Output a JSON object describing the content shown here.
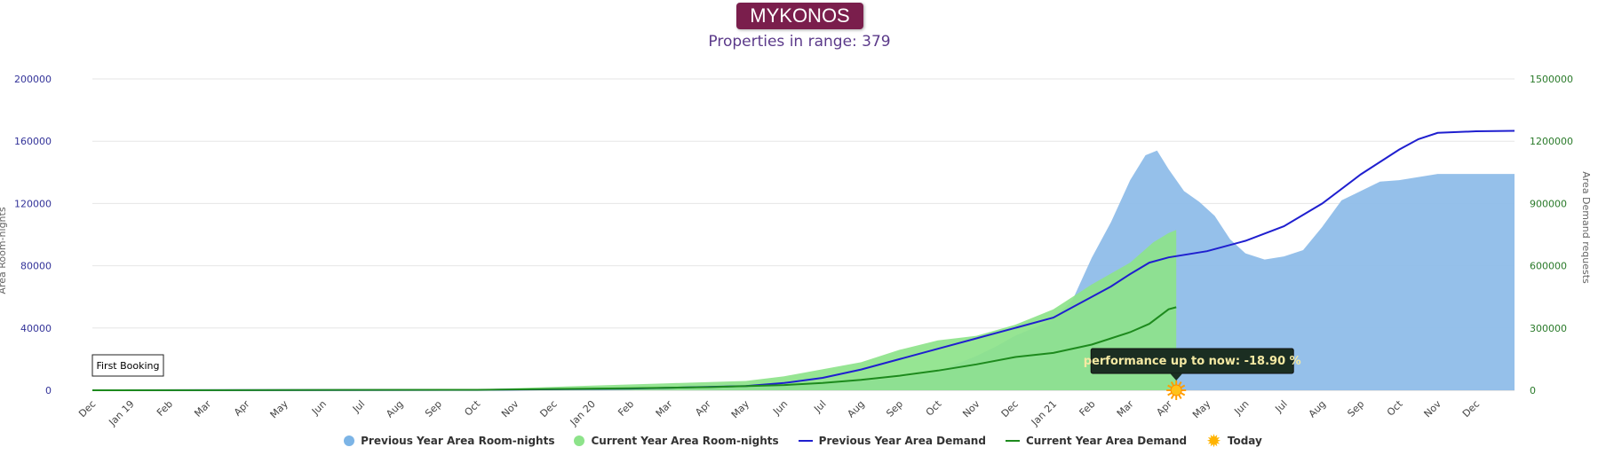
{
  "header": {
    "title": "MYKONOS",
    "subtitle": "Properties in range: 379"
  },
  "chart_data": {
    "type": "area",
    "x_categories": [
      "Dec",
      "Jan 19",
      "Feb",
      "Mar",
      "Apr",
      "May",
      "Jun",
      "Jul",
      "Aug",
      "Sep",
      "Oct",
      "Nov",
      "Dec",
      "Jan 20",
      "Feb",
      "Mar",
      "Apr",
      "May",
      "Jun",
      "Jul",
      "Aug",
      "Sep",
      "Oct",
      "Nov",
      "Dec",
      "Jan 21",
      "Feb",
      "Mar",
      "Apr",
      "May",
      "Jun",
      "Jul",
      "Aug",
      "Sep",
      "Oct",
      "Nov",
      "Dec"
    ],
    "left_axis": {
      "label": "Area Room-nights",
      "ticks": [
        "0",
        "40000",
        "80000",
        "120000",
        "160000",
        "200000"
      ],
      "range": [
        0,
        200000
      ],
      "color": "#333399"
    },
    "right_axis": {
      "label": "Area Demand requests",
      "ticks": [
        "0",
        "300000",
        "600000",
        "900000",
        "1200000",
        "1500000"
      ],
      "range": [
        0,
        1500000
      ],
      "color": "#2a7a2a"
    },
    "grid": true,
    "legend_position": "bottom",
    "series": [
      {
        "name": "Previous Year Area Room-nights",
        "kind": "area",
        "axis": "left",
        "color": "#8fbde9",
        "points": [
          [
            0,
            0
          ],
          [
            10,
            300
          ],
          [
            13,
            800
          ],
          [
            17,
            2000
          ],
          [
            20,
            6000
          ],
          [
            21,
            8000
          ],
          [
            22,
            12000
          ],
          [
            23,
            22000
          ],
          [
            23.5,
            28000
          ],
          [
            24,
            35000
          ],
          [
            24.5,
            40000
          ],
          [
            25,
            46000
          ],
          [
            25.5,
            58000
          ],
          [
            26,
            85000
          ],
          [
            26.5,
            108000
          ],
          [
            27,
            135000
          ],
          [
            27.4,
            151000
          ],
          [
            27.7,
            154000
          ],
          [
            28,
            142000
          ],
          [
            28.4,
            128000
          ],
          [
            28.8,
            121000
          ],
          [
            29.2,
            112000
          ],
          [
            29.6,
            97000
          ],
          [
            30,
            88000
          ],
          [
            30.5,
            84000
          ],
          [
            31,
            86000
          ],
          [
            31.5,
            90000
          ],
          [
            32,
            105000
          ],
          [
            32.5,
            122000
          ],
          [
            33,
            128000
          ],
          [
            33.5,
            134000
          ],
          [
            34,
            135000
          ],
          [
            34.5,
            137000
          ],
          [
            35,
            139000
          ],
          [
            36,
            139000
          ],
          [
            37,
            139000
          ]
        ]
      },
      {
        "name": "Current Year Area Room-nights",
        "kind": "area",
        "axis": "left",
        "color": "#8de38a",
        "points": [
          [
            0,
            0
          ],
          [
            10,
            500
          ],
          [
            13,
            3000
          ],
          [
            15,
            4500
          ],
          [
            17,
            6000
          ],
          [
            18,
            9000
          ],
          [
            20,
            18000
          ],
          [
            21,
            26000
          ],
          [
            22,
            32000
          ],
          [
            23,
            35000
          ],
          [
            24,
            42000
          ],
          [
            25,
            52000
          ],
          [
            26,
            68000
          ],
          [
            27,
            82000
          ],
          [
            27.6,
            95000
          ],
          [
            28,
            101000
          ],
          [
            28.2,
            103000
          ],
          [
            28.2,
            0
          ]
        ]
      },
      {
        "name": "Previous Year Area Demand",
        "kind": "line",
        "axis": "right",
        "color": "#1f1fcf",
        "points": [
          [
            0,
            0
          ],
          [
            10,
            1500
          ],
          [
            14,
            8000
          ],
          [
            17,
            20000
          ],
          [
            18,
            35000
          ],
          [
            19,
            60000
          ],
          [
            20,
            100000
          ],
          [
            21,
            150000
          ],
          [
            22,
            200000
          ],
          [
            23,
            250000
          ],
          [
            24,
            300000
          ],
          [
            25,
            350000
          ],
          [
            25.5,
            400000
          ],
          [
            26,
            450000
          ],
          [
            26.5,
            500000
          ],
          [
            27,
            560000
          ],
          [
            27.5,
            615000
          ],
          [
            28,
            640000
          ],
          [
            29,
            670000
          ],
          [
            30,
            720000
          ],
          [
            31,
            790000
          ],
          [
            32,
            900000
          ],
          [
            33,
            1040000
          ],
          [
            34,
            1160000
          ],
          [
            34.5,
            1210000
          ],
          [
            35,
            1240000
          ],
          [
            36,
            1248000
          ],
          [
            37,
            1250000
          ]
        ]
      },
      {
        "name": "Current Year Area Demand",
        "kind": "line",
        "axis": "right",
        "color": "#1d8a1d",
        "points": [
          [
            0,
            0
          ],
          [
            10,
            2000
          ],
          [
            14,
            10000
          ],
          [
            16,
            15000
          ],
          [
            18,
            25000
          ],
          [
            19,
            35000
          ],
          [
            20,
            50000
          ],
          [
            21,
            70000
          ],
          [
            22,
            95000
          ],
          [
            23,
            125000
          ],
          [
            24,
            160000
          ],
          [
            25,
            180000
          ],
          [
            26,
            220000
          ],
          [
            26.5,
            250000
          ],
          [
            27,
            280000
          ],
          [
            27.5,
            320000
          ],
          [
            28,
            390000
          ],
          [
            28.2,
            400000
          ]
        ]
      },
      {
        "name": "Today",
        "kind": "marker",
        "color": "#ffb300",
        "x": 28.2
      }
    ],
    "annotations": {
      "first_booking": "First Booking",
      "performance": "performance up to now: -18.90 %"
    }
  },
  "legend": {
    "items": [
      {
        "label": "Previous Year Area Room-nights",
        "kind": "dot",
        "color": "#7cb4e6"
      },
      {
        "label": "Current Year Area Room-nights",
        "kind": "dot",
        "color": "#8de38a"
      },
      {
        "label": "Previous Year Area Demand",
        "kind": "line",
        "color": "#1f1fcf"
      },
      {
        "label": "Current Year Area Demand",
        "kind": "line",
        "color": "#1d8a1d"
      },
      {
        "label": "Today",
        "kind": "sun",
        "color": "#ffb300"
      }
    ]
  }
}
